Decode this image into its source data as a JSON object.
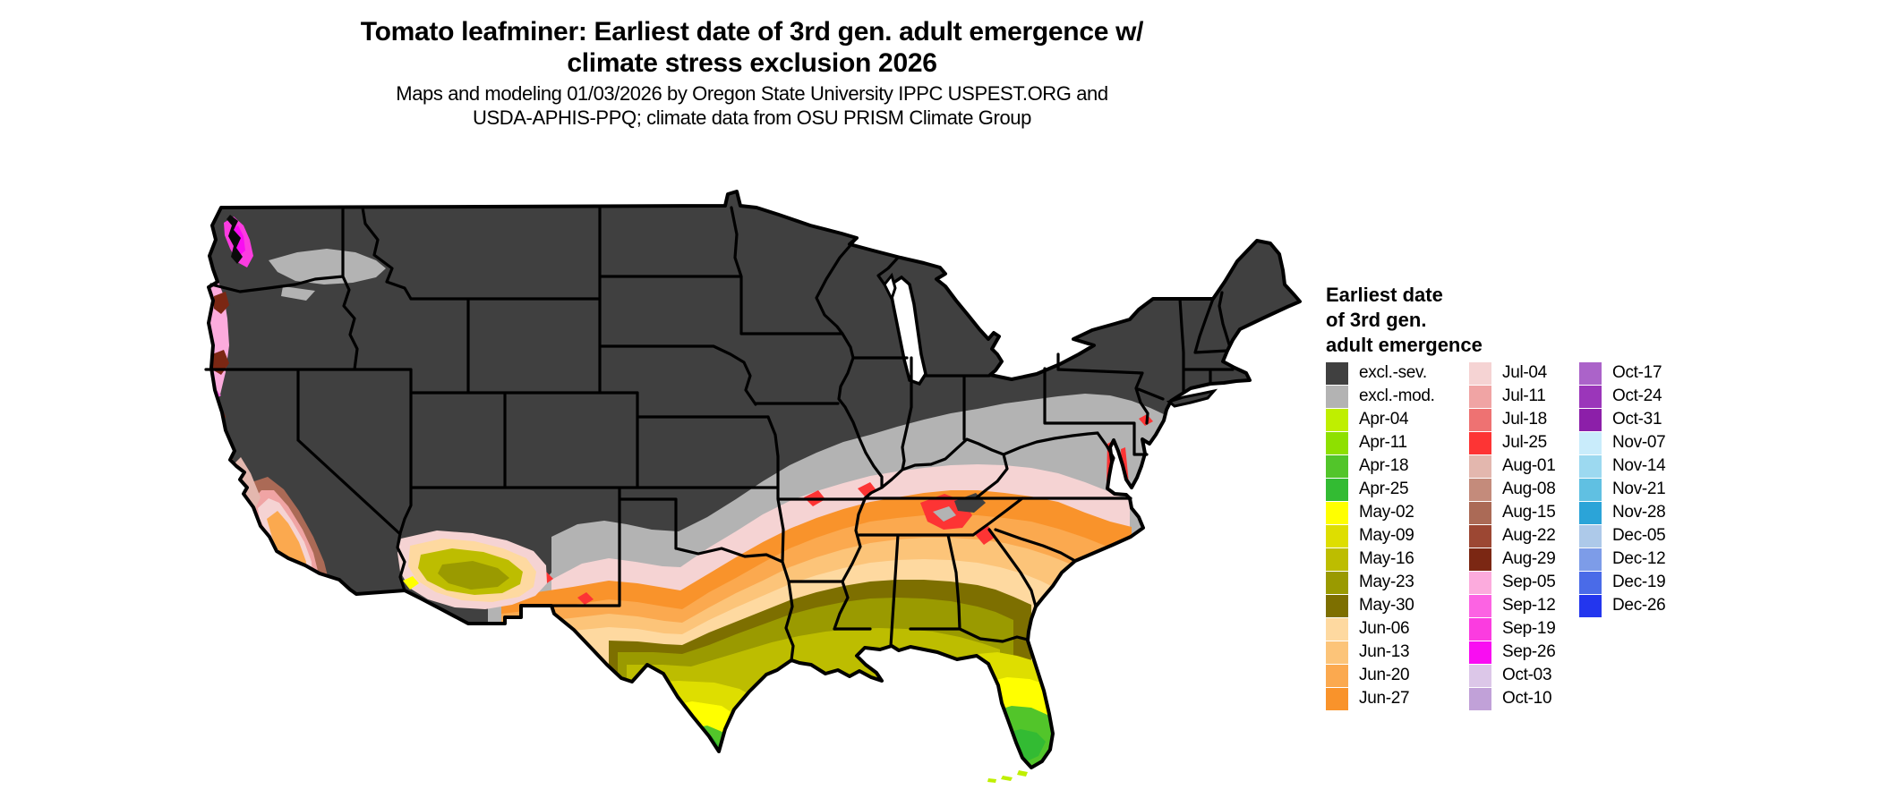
{
  "title": {
    "line1": "Tomato leafminer: Earliest date of 3rd gen. adult emergence w/",
    "line2": "climate stress exclusion 2026"
  },
  "subtitle": {
    "line1": "Maps and modeling 01/03/2026 by Oregon State University IPPC USPEST.ORG and",
    "line2": "USDA-APHIS-PPQ; climate data from OSU PRISM Climate Group"
  },
  "legend": {
    "title_lines": [
      "Earliest date",
      "of 3rd gen.",
      "adult emergence"
    ],
    "columns": [
      [
        {
          "label": "excl.-sev.",
          "color": "#404040"
        },
        {
          "label": "excl.-mod.",
          "color": "#b3b3b3"
        },
        {
          "label": "Apr-04",
          "color": "#bfef00"
        },
        {
          "label": "Apr-11",
          "color": "#8ee000"
        },
        {
          "label": "Apr-18",
          "color": "#52c52a"
        },
        {
          "label": "Apr-25",
          "color": "#33bb33"
        },
        {
          "label": "May-02",
          "color": "#ffff00"
        },
        {
          "label": "May-09",
          "color": "#dede00"
        },
        {
          "label": "May-16",
          "color": "#bdbd00"
        },
        {
          "label": "May-23",
          "color": "#9a9a00"
        },
        {
          "label": "May-30",
          "color": "#7d6f00"
        },
        {
          "label": "Jun-06",
          "color": "#fed9a0"
        },
        {
          "label": "Jun-13",
          "color": "#fcc479"
        },
        {
          "label": "Jun-20",
          "color": "#fba94f"
        },
        {
          "label": "Jun-27",
          "color": "#f9932b"
        }
      ],
      [
        {
          "label": "Jul-04",
          "color": "#f5d3d3"
        },
        {
          "label": "Jul-11",
          "color": "#f0a4a4"
        },
        {
          "label": "Jul-18",
          "color": "#ee7272"
        },
        {
          "label": "Jul-25",
          "color": "#fd3434"
        },
        {
          "label": "Aug-01",
          "color": "#e3b7ae"
        },
        {
          "label": "Aug-08",
          "color": "#c48b7b"
        },
        {
          "label": "Aug-15",
          "color": "#ab6a56"
        },
        {
          "label": "Aug-22",
          "color": "#9c4733"
        },
        {
          "label": "Aug-29",
          "color": "#7b2713"
        },
        {
          "label": "Sep-05",
          "color": "#fcabdd"
        },
        {
          "label": "Sep-12",
          "color": "#fc63e3"
        },
        {
          "label": "Sep-19",
          "color": "#fb3ce0"
        },
        {
          "label": "Sep-26",
          "color": "#f90df2"
        },
        {
          "label": "Oct-03",
          "color": "#dcc7e8"
        },
        {
          "label": "Oct-10",
          "color": "#c1a1d8"
        }
      ],
      [
        {
          "label": "Oct-17",
          "color": "#ab63c9"
        },
        {
          "label": "Oct-24",
          "color": "#9b36ba"
        },
        {
          "label": "Oct-31",
          "color": "#8c1fa9"
        },
        {
          "label": "Nov-07",
          "color": "#c9ecfb"
        },
        {
          "label": "Nov-14",
          "color": "#9cd9f0"
        },
        {
          "label": "Nov-21",
          "color": "#60c0e2"
        },
        {
          "label": "Nov-28",
          "color": "#2ba4d8"
        },
        {
          "label": "Dec-05",
          "color": "#adc9e9"
        },
        {
          "label": "Dec-12",
          "color": "#7d9ce8"
        },
        {
          "label": "Dec-19",
          "color": "#4a6be8"
        },
        {
          "label": "Dec-26",
          "color": "#2336ee"
        }
      ]
    ]
  },
  "map": {
    "region": "Contiguous United States choropleth",
    "border_color": "#000000",
    "water_color": "#ffffff",
    "gradient_note": "Earliest emergence (Apr greens/yellows) in south Texas and south Florida, grading north through May olives, June oranges and July pinks/reds; northern states excluded (dark gray) with moderate-exclusion light gray transition band; Pacific coast shows Aug-Sep browns/pinks/magentas; southern Arizona shows May olive pocket; California Central Valley shows Jun-Jul core ringed by Aug browns."
  }
}
